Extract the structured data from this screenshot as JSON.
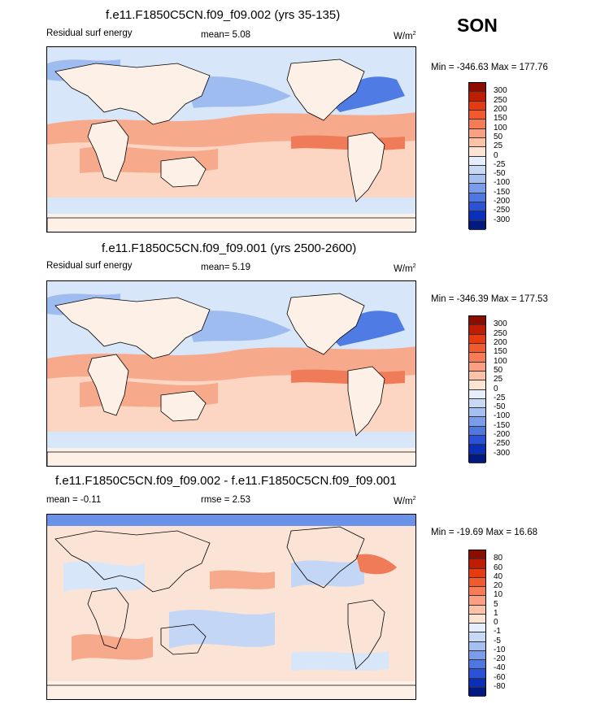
{
  "season": "SON",
  "panels": [
    {
      "title": "f.e11.F1850C5CN.f09_f09.002 (yrs 35-135)",
      "left_label": "Residual surf energy",
      "mid_label": "mean=   5.08",
      "units_base": "W/m",
      "units_exp": "2",
      "minmax": "Min = -346.63 Max = 177.76"
    },
    {
      "title": "f.e11.F1850C5CN.f09_f09.001 (yrs 2500-2600)",
      "left_label": "Residual surf energy",
      "mid_label": "mean=   5.19",
      "units_base": "W/m",
      "units_exp": "2",
      "minmax": "Min = -346.39 Max = 177.53"
    },
    {
      "title": "f.e11.F1850C5CN.f09_f09.002 - f.e11.F1850C5CN.f09_f09.001",
      "left_label": "mean =  -0.11",
      "mid_label": "rmse =   2.53",
      "units_base": "W/m",
      "units_exp": "2",
      "minmax": "Min = -19.69 Max =  16.68"
    }
  ],
  "chart_data": [
    {
      "type": "heatmap",
      "title": "f.e11.F1850C5CN.f09_f09.002 (yrs 35-135)",
      "variable": "Residual surf energy",
      "units": "W/m2",
      "mean": 5.08,
      "min": -346.63,
      "max": 177.76,
      "colorbar_levels": [
        300,
        250,
        200,
        150,
        100,
        50,
        25,
        0,
        -25,
        -50,
        -100,
        -150,
        -200,
        -250,
        -300
      ]
    },
    {
      "type": "heatmap",
      "title": "f.e11.F1850C5CN.f09_f09.001 (yrs 2500-2600)",
      "variable": "Residual surf energy",
      "units": "W/m2",
      "mean": 5.19,
      "min": -346.39,
      "max": 177.53,
      "colorbar_levels": [
        300,
        250,
        200,
        150,
        100,
        50,
        25,
        0,
        -25,
        -50,
        -100,
        -150,
        -200,
        -250,
        -300
      ]
    },
    {
      "type": "heatmap",
      "title": "f.e11.F1850C5CN.f09_f09.002 - f.e11.F1850C5CN.f09_f09.001",
      "units": "W/m2",
      "mean": -0.11,
      "rmse": 2.53,
      "min": -19.69,
      "max": 16.68,
      "colorbar_levels": [
        80,
        60,
        40,
        20,
        10,
        5,
        1,
        0,
        -1,
        -5,
        -10,
        -20,
        -40,
        -60,
        -80
      ]
    }
  ],
  "colorbar_colors": [
    "#8c0d00",
    "#c01c00",
    "#e63a10",
    "#f25a2e",
    "#f77c55",
    "#fa9f80",
    "#fcc2a8",
    "#fde3d2",
    "#e6eefb",
    "#c8d9f6",
    "#a5c0f0",
    "#7b9cea",
    "#4e77e0",
    "#2a52d6",
    "#0a2fb8",
    "#001a80"
  ],
  "colors": {
    "land": "#fdf0e6",
    "pos_light": "#fcd6c2",
    "pos_mid": "#f7a98b",
    "pos_strong": "#f07b58",
    "neg_light": "#d8e6fa",
    "neg_mid": "#9fbcf0",
    "neg_strong": "#4f7ce4",
    "diff_base": "#fbe4d6"
  }
}
